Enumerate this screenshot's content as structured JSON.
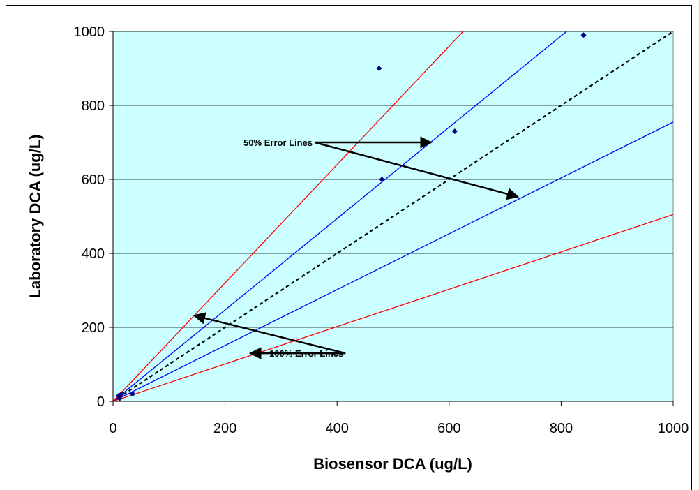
{
  "chart_data": {
    "type": "scatter",
    "xlabel": "Biosensor DCA (ug/L)",
    "ylabel": "Laboratory DCA (ug/L)",
    "xlim": [
      0,
      1000
    ],
    "ylim": [
      0,
      1000
    ],
    "xticks": [
      0,
      200,
      400,
      600,
      800,
      1000
    ],
    "yticks": [
      0,
      200,
      400,
      600,
      800,
      1000
    ],
    "grid": "horizontal",
    "plot_background": "#ccffff",
    "series": [
      {
        "marker": "diamond",
        "color": "#000080",
        "points": [
          {
            "x": 10,
            "y": 15
          },
          {
            "x": 12,
            "y": 8
          },
          {
            "x": 15,
            "y": 20
          },
          {
            "x": 35,
            "y": 20
          },
          {
            "x": 475,
            "y": 900
          },
          {
            "x": 480,
            "y": 600
          },
          {
            "x": 610,
            "y": 730
          },
          {
            "x": 840,
            "y": 990
          }
        ]
      }
    ],
    "reference_lines": [
      {
        "slope": 1.0,
        "color": "#000000",
        "style": "dashed"
      },
      {
        "slope": 1.235,
        "color": "#0000ff",
        "style": "solid"
      },
      {
        "slope": 0.755,
        "color": "#0000ff",
        "style": "solid"
      },
      {
        "slope": 1.6,
        "color": "#ff0000",
        "style": "solid"
      },
      {
        "slope": 0.505,
        "color": "#ff0000",
        "style": "solid"
      }
    ],
    "annotations": [
      {
        "text": "50% Error Lines",
        "label_at": {
          "x": 360,
          "y": 700
        },
        "arrows_to": [
          {
            "x": 568,
            "y": 700
          },
          {
            "x": 723,
            "y": 553
          }
        ]
      },
      {
        "text": "100% Error Lines",
        "label_at": {
          "x": 415,
          "y": 130
        },
        "arrows_to": [
          {
            "x": 145,
            "y": 232
          },
          {
            "x": 245,
            "y": 130
          }
        ]
      }
    ]
  }
}
